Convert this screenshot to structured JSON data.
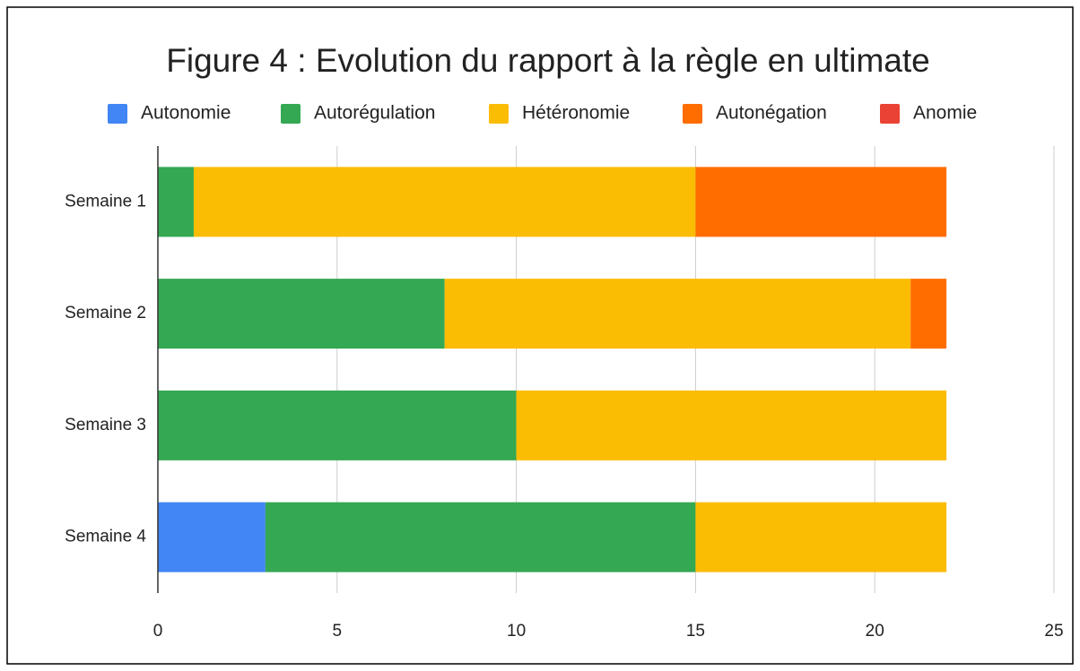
{
  "chart_data": {
    "type": "stacked-bar-horizontal",
    "title": "Figure 4 : Evolution du rapport à la règle en ultimate",
    "categories": [
      "Semaine 1",
      "Semaine 2",
      "Semaine 3",
      "Semaine 4"
    ],
    "series": [
      {
        "name": "Autonomie",
        "color": "#4285f4",
        "values": [
          0,
          0,
          0,
          3
        ]
      },
      {
        "name": "Autorégulation",
        "color": "#34a853",
        "values": [
          1,
          8,
          10,
          12
        ]
      },
      {
        "name": "Hétéronomie",
        "color": "#fbbc04",
        "values": [
          14,
          13,
          12,
          7
        ]
      },
      {
        "name": "Autonégation",
        "color": "#ff6d01",
        "values": [
          7,
          1,
          0,
          0
        ]
      },
      {
        "name": "Anomie",
        "color": "#ea4335",
        "values": [
          0,
          0,
          0,
          0
        ]
      }
    ],
    "xlim": [
      0,
      25
    ],
    "xticks": [
      0,
      5,
      10,
      15,
      20,
      25
    ],
    "grid": true,
    "legend": "top"
  }
}
